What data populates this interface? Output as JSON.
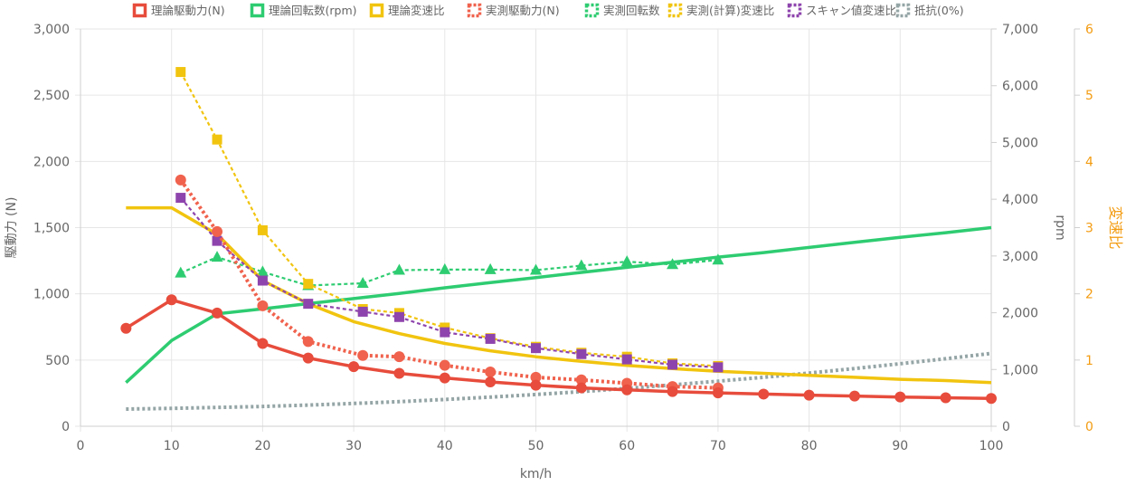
{
  "chart_data": {
    "type": "line",
    "x_axis": {
      "title": "km/h",
      "min": 0,
      "max": 100,
      "ticks": [
        0,
        10,
        20,
        30,
        40,
        50,
        60,
        70,
        80,
        90,
        100
      ]
    },
    "y_axes": [
      {
        "id": "force",
        "title": "駆動力 (N)",
        "position": "left",
        "min": 0,
        "max": 3000,
        "ticks": [
          0,
          500,
          1000,
          1500,
          2000,
          2500,
          3000
        ],
        "tick_labels": [
          "0",
          "500",
          "1,000",
          "1,500",
          "2,000",
          "2,500",
          "3,000"
        ]
      },
      {
        "id": "rpm",
        "title": "rpm",
        "position": "right",
        "min": 0,
        "max": 7000,
        "ticks": [
          0,
          1000,
          2000,
          3000,
          4000,
          5000,
          6000,
          7000
        ],
        "tick_labels": [
          "0",
          "1,000",
          "2,000",
          "3,000",
          "4,000",
          "5,000",
          "6,000",
          "7,000"
        ]
      },
      {
        "id": "ratio",
        "title": "変速比",
        "position": "right",
        "min": 0,
        "max": 6,
        "ticks": [
          0,
          1,
          2,
          3,
          4,
          5,
          6
        ],
        "tick_labels": [
          "0",
          "1",
          "2",
          "3",
          "4",
          "5",
          "6"
        ],
        "color": "#f39c12"
      }
    ],
    "grid": true,
    "legend_position": "top",
    "series": [
      {
        "name": "理論駆動力(N)",
        "axis": "force",
        "color": "#e74c3c",
        "style": "solid",
        "marker": "circle",
        "x": [
          5,
          10,
          15,
          20,
          25,
          30,
          35,
          40,
          45,
          50,
          55,
          60,
          65,
          70,
          75,
          80,
          85,
          90,
          95,
          100
        ],
        "y": [
          740,
          955,
          855,
          625,
          515,
          450,
          400,
          365,
          335,
          310,
          290,
          275,
          262,
          252,
          243,
          235,
          228,
          221,
          215,
          210
        ]
      },
      {
        "name": "理論回転数(rpm)",
        "axis": "rpm",
        "color": "#2ecc71",
        "style": "solid",
        "marker": "none",
        "x": [
          5,
          10,
          15,
          20,
          25,
          30,
          35,
          40,
          45,
          50,
          55,
          60,
          65,
          70,
          75,
          80,
          85,
          90,
          95,
          100
        ],
        "y": [
          770,
          1510,
          1980,
          2070,
          2160,
          2250,
          2340,
          2440,
          2530,
          2620,
          2710,
          2800,
          2890,
          2980,
          3060,
          3150,
          3240,
          3330,
          3410,
          3500
        ]
      },
      {
        "name": "理論変速比",
        "axis": "ratio",
        "color": "#f1c40f",
        "style": "solid",
        "marker": "none",
        "x": [
          5,
          10,
          15,
          20,
          25,
          30,
          35,
          40,
          45,
          50,
          55,
          60,
          65,
          70,
          75,
          80,
          85,
          90,
          95,
          100
        ],
        "y": [
          3.3,
          3.3,
          2.9,
          2.2,
          1.85,
          1.58,
          1.4,
          1.25,
          1.14,
          1.05,
          0.98,
          0.92,
          0.87,
          0.83,
          0.8,
          0.77,
          0.74,
          0.71,
          0.69,
          0.66
        ]
      },
      {
        "name": "実測駆動力(N)",
        "axis": "force",
        "color": "#f0624d",
        "style": "dotted",
        "marker": "circle",
        "x": [
          11,
          15,
          20,
          25,
          31,
          35,
          40,
          45,
          50,
          55,
          60,
          65,
          70
        ],
        "y": [
          1860,
          1470,
          910,
          640,
          535,
          525,
          460,
          410,
          370,
          350,
          325,
          300,
          290
        ]
      },
      {
        "name": "実測回転数",
        "axis": "rpm",
        "color": "#2ecc71",
        "style": "dashed",
        "marker": "triangle",
        "x": [
          11,
          15,
          20,
          25,
          31,
          35,
          40,
          45,
          50,
          55,
          60,
          65,
          70
        ],
        "y": [
          2700,
          2980,
          2720,
          2480,
          2520,
          2750,
          2760,
          2760,
          2750,
          2830,
          2900,
          2850,
          2930
        ]
      },
      {
        "name": "実測(計算)変速比",
        "axis": "ratio",
        "color": "#f1c40f",
        "style": "dashed",
        "marker": "square",
        "x": [
          11,
          15,
          20,
          25,
          31,
          35,
          40,
          45,
          50,
          55,
          60,
          65,
          70
        ],
        "y": [
          5.35,
          4.33,
          2.96,
          2.15,
          1.77,
          1.71,
          1.49,
          1.33,
          1.2,
          1.11,
          1.05,
          0.95,
          0.91
        ]
      },
      {
        "name": "スキャン値変速比",
        "axis": "ratio",
        "color": "#8e44ad",
        "style": "dashed",
        "marker": "square",
        "x": [
          11,
          15,
          20,
          25,
          31,
          35,
          40,
          45,
          50,
          55,
          60,
          65,
          70
        ],
        "y": [
          3.45,
          2.8,
          2.2,
          1.85,
          1.73,
          1.65,
          1.42,
          1.32,
          1.18,
          1.09,
          1.01,
          0.93,
          0.89
        ]
      },
      {
        "name": "抵抗(0%)",
        "axis": "force",
        "color": "#95a5a6",
        "style": "dotted",
        "marker": "none",
        "x": [
          5,
          10,
          15,
          20,
          25,
          30,
          35,
          40,
          45,
          50,
          55,
          60,
          65,
          70,
          75,
          80,
          85,
          90,
          95,
          100
        ],
        "y": [
          130,
          135,
          142,
          150,
          160,
          172,
          186,
          202,
          220,
          240,
          262,
          286,
          312,
          340,
          370,
          402,
          436,
          472,
          510,
          550
        ]
      }
    ]
  }
}
